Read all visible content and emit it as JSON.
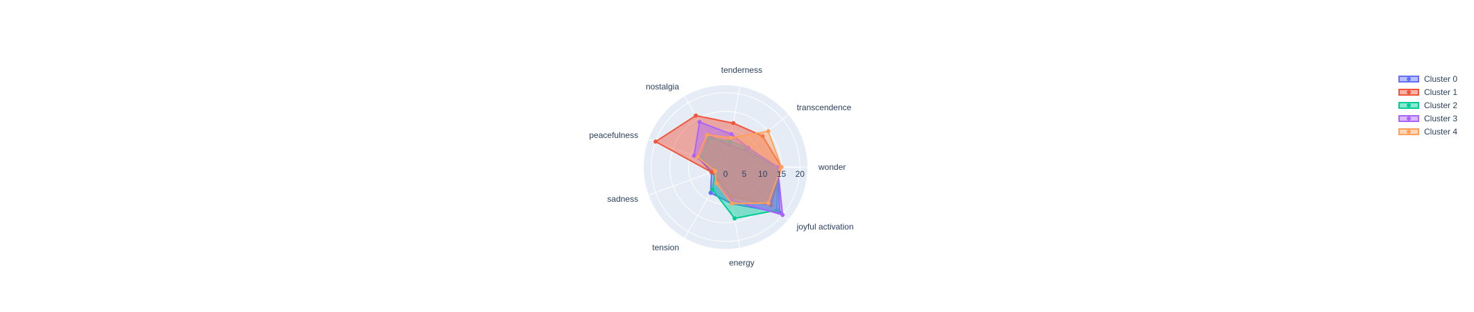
{
  "chart_data": {
    "type": "radar",
    "title": "",
    "axes": [
      "wonder",
      "joyful activation",
      "energy",
      "tension",
      "sadness",
      "peacefulness",
      "nostalgia",
      "tenderness",
      "transcendence"
    ],
    "radial_ticks": [
      "0",
      "5",
      "10",
      "15",
      "20"
    ],
    "radial_range": [
      0,
      22
    ],
    "legend_position": "top-right",
    "series": [
      {
        "name": "Cluster 0",
        "color": "#636efa",
        "values": [
          14,
          19,
          10,
          8,
          4,
          8,
          10,
          6,
          7
        ]
      },
      {
        "name": "Cluster 1",
        "color": "#ef553b",
        "values": [
          15,
          16,
          8,
          4,
          4,
          20,
          16,
          12,
          13
        ]
      },
      {
        "name": "Cluster 2",
        "color": "#00cc96",
        "values": [
          14,
          18,
          14,
          7,
          3,
          7,
          9,
          7,
          8
        ]
      },
      {
        "name": "Cluster 3",
        "color": "#ab63fa",
        "values": [
          14,
          20,
          9,
          5,
          3,
          9,
          14,
          9,
          8
        ]
      },
      {
        "name": "Cluster 4",
        "color": "#ffa15a",
        "values": [
          15,
          15,
          10,
          5,
          3,
          8,
          10,
          8,
          15
        ]
      }
    ]
  }
}
